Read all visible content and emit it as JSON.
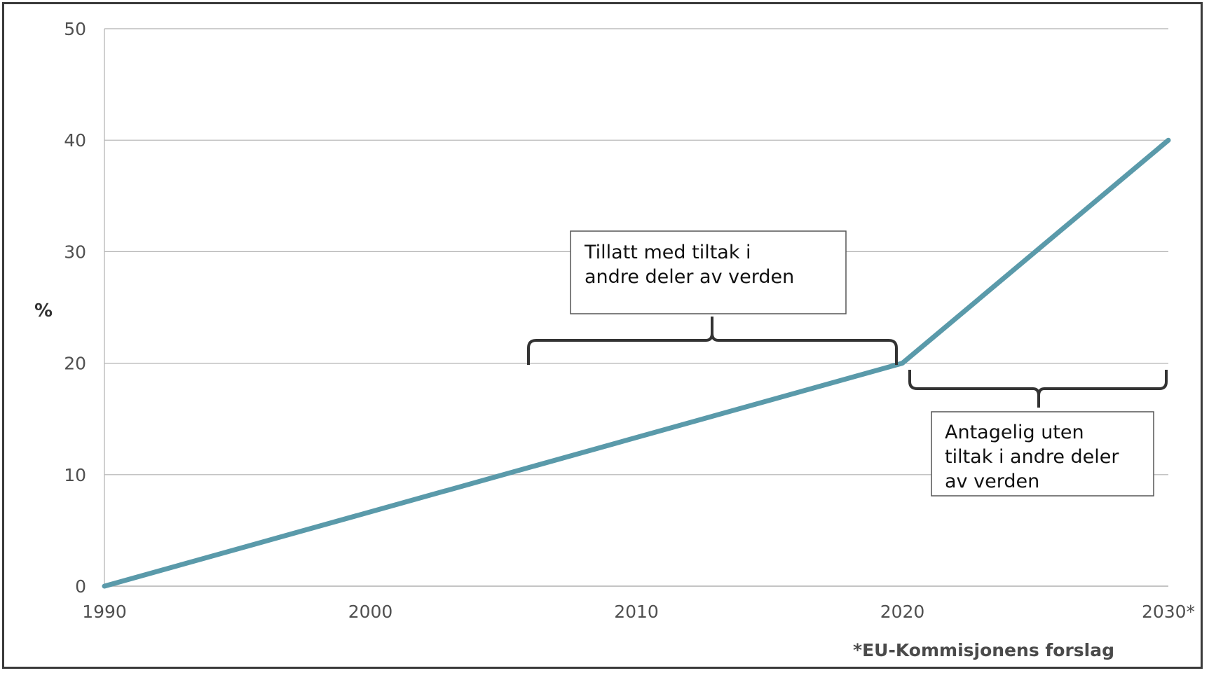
{
  "chart_data": {
    "type": "line",
    "title": "",
    "xlabel": "",
    "ylabel": "%",
    "x": [
      1990,
      2020,
      2030
    ],
    "series": [
      {
        "values": [
          0,
          20,
          40
        ]
      }
    ],
    "xlim": [
      1990,
      2030
    ],
    "ylim": [
      0,
      50
    ],
    "x_ticks": [
      "1990",
      "2000",
      "2010",
      "2020",
      "2030*"
    ],
    "y_ticks": [
      "0",
      "10",
      "20",
      "30",
      "40",
      "50"
    ],
    "grid": "horizontal",
    "annotations": [
      {
        "text": "Tillatt med tiltak i andre deler av verden",
        "lines": [
          "Tillatt med tiltak i",
          "andre deler av verden"
        ]
      },
      {
        "text": "Antagelig uten tiltak i andre deler av verden",
        "lines": [
          "Antagelig uten",
          "tiltak i andre deler",
          "av verden"
        ]
      }
    ],
    "footnote": "*EU-Kommisjonens forslag",
    "colors": {
      "line": "#5a9aaa",
      "grid": "#b0b0b0",
      "brace": "#333333"
    }
  }
}
